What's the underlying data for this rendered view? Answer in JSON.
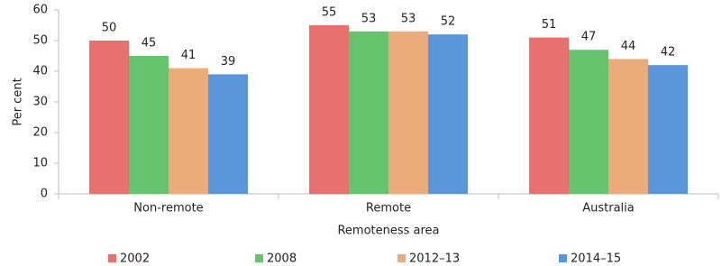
{
  "chart_data": {
    "type": "bar",
    "categories": [
      "Non-remote",
      "Remote",
      "Australia"
    ],
    "series": [
      {
        "name": "2002",
        "color": "#e8706f",
        "values": [
          50,
          55,
          51
        ]
      },
      {
        "name": "2008",
        "color": "#66c36e",
        "values": [
          45,
          53,
          47
        ]
      },
      {
        "name": "2012–13",
        "color": "#ebab7b",
        "values": [
          41,
          53,
          44
        ]
      },
      {
        "name": "2014–15",
        "color": "#5b95da",
        "values": [
          39,
          52,
          42
        ]
      }
    ],
    "ylabel": "Per cent",
    "xlabel": "Remoteness area",
    "ylim": [
      0,
      60
    ],
    "yticks": [
      0,
      10,
      20,
      30,
      40,
      50,
      60
    ],
    "grid": false,
    "legend": "bottom",
    "data_labels": true
  }
}
